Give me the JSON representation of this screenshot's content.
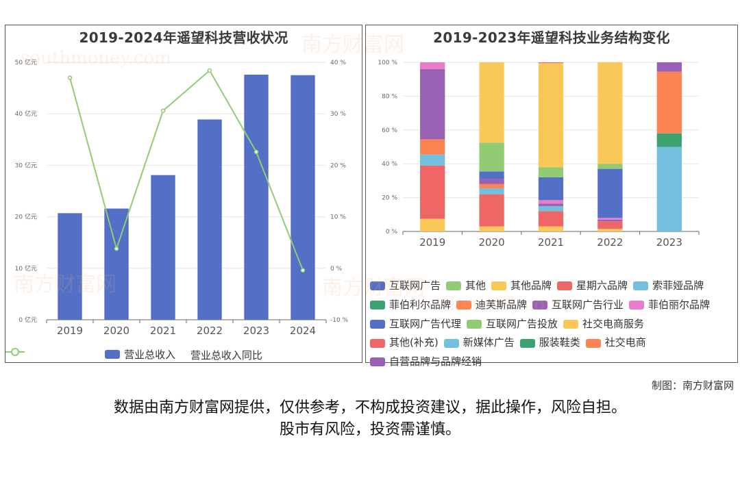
{
  "left_chart": {
    "title": "2019-2024年遥望科技营收状况",
    "y_left_ticks": [
      "0 亿元",
      "10 亿元",
      "20 亿元",
      "30 亿元",
      "40 亿元",
      "50 亿元"
    ],
    "y_right_ticks": [
      "-10 %",
      "0 %",
      "10 %",
      "20 %",
      "30 %",
      "40 %"
    ],
    "legend": {
      "bar": "营业总收入",
      "line": "营业总收入同比"
    },
    "colors": {
      "bar": "#5470c6",
      "line": "#91cc75"
    }
  },
  "right_chart": {
    "title": "2019-2023年遥望科技业务结构变化",
    "y_ticks": [
      "0 %",
      "20 %",
      "40 %",
      "60 %",
      "80 %",
      "100 %"
    ],
    "legend": [
      {
        "name": "互联网广告",
        "color": "#5470c6"
      },
      {
        "name": "其他",
        "color": "#91cc75"
      },
      {
        "name": "其他品牌",
        "color": "#fac858"
      },
      {
        "name": "星期六品牌",
        "color": "#ee6666"
      },
      {
        "name": "索菲娅品牌",
        "color": "#73c0de"
      },
      {
        "name": "菲伯利尔品牌",
        "color": "#3ba272"
      },
      {
        "name": "迪芙斯品牌",
        "color": "#fc8452"
      },
      {
        "name": "互联网广告行业",
        "color": "#9a60b4"
      },
      {
        "name": "菲伯丽尔品牌",
        "color": "#ea7ccc"
      },
      {
        "name": "互联网广告代理",
        "color": "#5470c6"
      },
      {
        "name": "互联网广告投放",
        "color": "#91cc75"
      },
      {
        "name": "社交电商服务",
        "color": "#fac858"
      },
      {
        "name": "其他(补充)",
        "color": "#ee6666"
      },
      {
        "name": "新媒体广告",
        "color": "#73c0de"
      },
      {
        "name": "服装鞋类",
        "color": "#3ba272"
      },
      {
        "name": "社交电商",
        "color": "#fc8452"
      },
      {
        "name": "自营品牌与品牌经销",
        "color": "#9a60b4"
      }
    ],
    "legend_rows": [
      [
        0,
        1,
        2,
        3,
        4
      ],
      [
        5,
        6,
        7,
        8
      ],
      [
        9,
        10,
        11
      ],
      [
        12,
        13,
        14,
        15
      ],
      [
        16
      ]
    ]
  },
  "chart_data": [
    {
      "type": "bar",
      "title": "2019-2024年遥望科技营收状况",
      "categories": [
        "2019",
        "2020",
        "2021",
        "2022",
        "2023",
        "2024"
      ],
      "ylim": [
        0,
        50
      ],
      "y2lim": [
        -10,
        40
      ],
      "series": [
        {
          "name": "营业总收入",
          "type": "bar",
          "values": [
            20.7,
            21.6,
            28.1,
            38.9,
            47.6,
            47.5
          ]
        },
        {
          "name": "营业总收入同比",
          "type": "line",
          "values": [
            37.0,
            3.8,
            30.6,
            38.4,
            22.6,
            -0.4
          ]
        }
      ],
      "legend_position": "bottom"
    },
    {
      "type": "bar",
      "stacked": true,
      "title": "2019-2023年遥望科技业务结构变化",
      "categories": [
        "2019",
        "2020",
        "2021",
        "2022",
        "2023"
      ],
      "ylim": [
        0,
        100
      ],
      "segments": [
        [
          {
            "series": "其他品牌",
            "value": 7.5
          },
          {
            "series": "星期六品牌",
            "value": 31.5
          },
          {
            "series": "索菲娅品牌",
            "value": 6.5
          },
          {
            "series": "迪芙斯品牌",
            "value": 9.0
          },
          {
            "series": "互联网广告行业",
            "value": 41.5
          },
          {
            "series": "菲伯丽尔品牌",
            "value": 4.0
          }
        ],
        [
          {
            "series": "其他品牌",
            "value": 3.0
          },
          {
            "series": "星期六品牌",
            "value": 19.0
          },
          {
            "series": "索菲娅品牌",
            "value": 3.5
          },
          {
            "series": "迪芙斯品牌",
            "value": 2.5
          },
          {
            "series": "互联网广告行业",
            "value": 3.0
          },
          {
            "series": "互联网广告",
            "value": 4.5
          },
          {
            "series": "其他",
            "value": 17.0
          },
          {
            "series": "社交电商服务",
            "value": 47.5
          }
        ],
        [
          {
            "series": "其他品牌",
            "value": 3.0
          },
          {
            "series": "星期六品牌",
            "value": 9.0
          },
          {
            "series": "索菲娅品牌",
            "value": 3.0
          },
          {
            "series": "互联网广告行业",
            "value": 1.5
          },
          {
            "series": "菲伯丽尔品牌",
            "value": 2.0
          },
          {
            "series": "互联网广告代理",
            "value": 13.5
          },
          {
            "series": "互联网广告投放",
            "value": 6.0
          },
          {
            "series": "社交电商服务",
            "value": 61.5
          },
          {
            "series": "其他(补充)",
            "value": 0.5
          }
        ],
        [
          {
            "series": "其他品牌",
            "value": 1.5
          },
          {
            "series": "星期六品牌",
            "value": 4.5
          },
          {
            "series": "互联网广告行业",
            "value": 1.0
          },
          {
            "series": "菲伯丽尔品牌",
            "value": 1.0
          },
          {
            "series": "互联网广告代理",
            "value": 29.0
          },
          {
            "series": "互联网广告投放",
            "value": 3.0
          },
          {
            "series": "社交电商服务",
            "value": 60.0
          }
        ],
        [
          {
            "series": "新媒体广告",
            "value": 50.0
          },
          {
            "series": "服装鞋类",
            "value": 8.0
          },
          {
            "series": "社交电商",
            "value": 36.5
          },
          {
            "series": "自营品牌与品牌经销",
            "value": 5.5
          }
        ]
      ]
    }
  ],
  "watermark": {
    "cn": "南方财富网",
    "en": "southmoney.com"
  },
  "credit": "制图：南方财富网",
  "disclaimer": {
    "line1": "数据由南方财富网提供，仅供参考，不构成投资建议，据此操作，风险自担。",
    "line2": "股市有风险，投资需谨慎。"
  }
}
